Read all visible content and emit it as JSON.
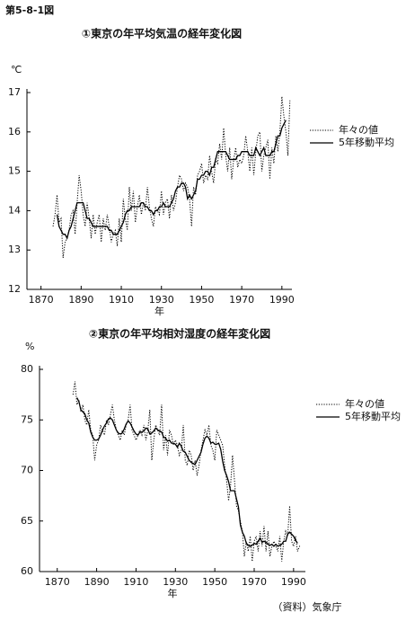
{
  "figure_label": "第5-8-1図",
  "source": "（資料）気象庁",
  "chart_data": [
    {
      "type": "line",
      "title": "①東京の年平均気温の経年変化図",
      "y_unit": "℃",
      "x_label": "年",
      "xlim": [
        1863,
        1995
      ],
      "xticks": [
        1870,
        1890,
        1910,
        1930,
        1950,
        1970,
        1990
      ],
      "ylim": [
        12,
        17
      ],
      "yticks": [
        12,
        13,
        14,
        15,
        16,
        17
      ],
      "grid": false,
      "x": [
        1876,
        1877,
        1878,
        1879,
        1880,
        1881,
        1882,
        1883,
        1884,
        1885,
        1886,
        1887,
        1888,
        1889,
        1890,
        1891,
        1892,
        1893,
        1894,
        1895,
        1896,
        1897,
        1898,
        1899,
        1900,
        1901,
        1902,
        1903,
        1904,
        1905,
        1906,
        1907,
        1908,
        1909,
        1910,
        1911,
        1912,
        1913,
        1914,
        1915,
        1916,
        1917,
        1918,
        1919,
        1920,
        1921,
        1922,
        1923,
        1924,
        1925,
        1926,
        1927,
        1928,
        1929,
        1930,
        1931,
        1932,
        1933,
        1934,
        1935,
        1936,
        1937,
        1938,
        1939,
        1940,
        1941,
        1942,
        1943,
        1944,
        1945,
        1946,
        1947,
        1948,
        1949,
        1950,
        1951,
        1952,
        1953,
        1954,
        1955,
        1956,
        1957,
        1958,
        1959,
        1960,
        1961,
        1962,
        1963,
        1964,
        1965,
        1966,
        1967,
        1968,
        1969,
        1970,
        1971,
        1972,
        1973,
        1974,
        1975,
        1976,
        1977,
        1978,
        1979,
        1980,
        1981,
        1982,
        1983,
        1984,
        1985,
        1986,
        1987,
        1988,
        1989,
        1990,
        1991,
        1992,
        1993,
        1994
      ],
      "series": [
        {
          "name": "年々の値",
          "color": "#000000",
          "style": "dotted",
          "values": [
            13.6,
            13.9,
            14.4,
            13.7,
            13.8,
            12.8,
            13.2,
            13.3,
            13.5,
            13.9,
            14.0,
            13.4,
            14.2,
            14.9,
            14.5,
            13.9,
            13.6,
            14.2,
            13.8,
            13.3,
            13.9,
            13.4,
            13.7,
            13.9,
            13.2,
            13.8,
            13.5,
            13.9,
            13.6,
            13.2,
            13.4,
            13.5,
            13.1,
            13.8,
            13.2,
            14.3,
            13.8,
            13.5,
            14.6,
            14.0,
            14.5,
            13.7,
            14.1,
            14.4,
            13.9,
            14.2,
            14.0,
            14.6,
            14.1,
            13.8,
            13.6,
            14.1,
            14.0,
            13.9,
            14.5,
            13.9,
            14.2,
            14.3,
            13.8,
            14.4,
            14.0,
            14.2,
            14.6,
            14.9,
            14.8,
            14.5,
            14.7,
            14.6,
            14.3,
            13.6,
            14.6,
            14.4,
            14.9,
            15.0,
            15.2,
            14.7,
            14.9,
            14.8,
            15.4,
            15.0,
            14.7,
            15.3,
            15.2,
            15.7,
            15.3,
            16.1,
            15.4,
            15.0,
            15.6,
            14.8,
            15.3,
            15.6,
            15.1,
            15.3,
            15.2,
            15.4,
            15.9,
            15.5,
            15.0,
            15.6,
            14.9,
            15.5,
            15.9,
            16.0,
            15.0,
            15.4,
            15.6,
            15.8,
            14.8,
            15.6,
            15.2,
            15.9,
            15.5,
            16.0,
            16.9,
            16.4,
            16.0,
            15.4,
            16.8
          ]
        },
        {
          "name": "5年移動平均",
          "color": "#000000",
          "style": "solid",
          "values": [
            null,
            null,
            13.9,
            13.6,
            13.5,
            13.4,
            13.4,
            13.3,
            13.5,
            13.6,
            13.8,
            14.0,
            14.2,
            14.2,
            14.2,
            14.2,
            14.0,
            13.8,
            13.8,
            13.7,
            13.6,
            13.6,
            13.6,
            13.6,
            13.6,
            13.6,
            13.6,
            13.6,
            13.5,
            13.5,
            13.4,
            13.4,
            13.4,
            13.5,
            13.6,
            13.7,
            13.9,
            14.0,
            14.0,
            14.1,
            14.1,
            14.1,
            14.1,
            14.1,
            14.2,
            14.2,
            14.1,
            14.1,
            14.0,
            14.0,
            13.9,
            14.0,
            14.0,
            14.1,
            14.1,
            14.2,
            14.1,
            14.1,
            14.1,
            14.2,
            14.3,
            14.5,
            14.6,
            14.6,
            14.7,
            14.7,
            14.6,
            14.3,
            14.4,
            14.3,
            14.4,
            14.5,
            14.8,
            14.8,
            14.9,
            14.9,
            15.0,
            15.0,
            14.9,
            15.1,
            15.1,
            15.3,
            15.5,
            15.5,
            15.5,
            15.5,
            15.5,
            15.4,
            15.3,
            15.3,
            15.3,
            15.3,
            15.4,
            15.4,
            15.5,
            15.5,
            15.5,
            15.5,
            15.4,
            15.4,
            15.4,
            15.6,
            15.5,
            15.4,
            15.5,
            15.6,
            15.4,
            15.4,
            15.4,
            15.5,
            15.5,
            15.7,
            15.9,
            15.9,
            16.1,
            16.2,
            16.3,
            null,
            null
          ]
        }
      ]
    },
    {
      "type": "line",
      "title": "②東京の年平均相対湿度の経年変化図",
      "y_unit": "%",
      "x_label": "年",
      "xlim": [
        1861,
        1996
      ],
      "xticks": [
        1870,
        1890,
        1910,
        1930,
        1950,
        1970,
        1990
      ],
      "ylim": [
        60,
        80
      ],
      "yticks": [
        60,
        65,
        70,
        75,
        80
      ],
      "grid": false,
      "x": [
        1876,
        1877,
        1878,
        1879,
        1880,
        1881,
        1882,
        1883,
        1884,
        1885,
        1886,
        1887,
        1888,
        1889,
        1890,
        1891,
        1892,
        1893,
        1894,
        1895,
        1896,
        1897,
        1898,
        1899,
        1900,
        1901,
        1902,
        1903,
        1904,
        1905,
        1906,
        1907,
        1908,
        1909,
        1910,
        1911,
        1912,
        1913,
        1914,
        1915,
        1916,
        1917,
        1918,
        1919,
        1920,
        1921,
        1922,
        1923,
        1924,
        1925,
        1926,
        1927,
        1928,
        1929,
        1930,
        1931,
        1932,
        1933,
        1934,
        1935,
        1936,
        1937,
        1938,
        1939,
        1940,
        1941,
        1942,
        1943,
        1944,
        1945,
        1946,
        1947,
        1948,
        1949,
        1950,
        1951,
        1952,
        1953,
        1954,
        1955,
        1956,
        1957,
        1958,
        1959,
        1960,
        1961,
        1962,
        1963,
        1964,
        1965,
        1966,
        1967,
        1968,
        1969,
        1970,
        1971,
        1972,
        1973,
        1974,
        1975,
        1976,
        1977,
        1978,
        1979,
        1980,
        1981,
        1982,
        1983,
        1984,
        1985,
        1986,
        1987,
        1988,
        1989,
        1990,
        1991,
        1992,
        1993,
        1994
      ],
      "series": [
        {
          "name": "年々の値",
          "color": "#000000",
          "style": "dotted",
          "values": [
            null,
            null,
            77.5,
            78.8,
            76.5,
            77.0,
            75.8,
            76.5,
            75.0,
            74.5,
            76.0,
            74.0,
            73.5,
            71.0,
            72.5,
            73.0,
            74.5,
            74.0,
            73.5,
            75.0,
            74.5,
            75.5,
            76.5,
            75.0,
            74.0,
            73.5,
            73.0,
            74.0,
            73.5,
            74.5,
            75.0,
            76.5,
            74.0,
            73.5,
            73.0,
            73.5,
            74.0,
            73.5,
            74.5,
            73.0,
            74.0,
            76.0,
            71.0,
            73.0,
            74.5,
            74.0,
            73.5,
            76.5,
            72.0,
            73.5,
            71.5,
            74.0,
            73.5,
            72.5,
            73.0,
            72.5,
            71.5,
            72.0,
            74.5,
            71.0,
            70.5,
            72.0,
            71.5,
            70.0,
            71.0,
            69.5,
            70.5,
            72.0,
            73.0,
            74.0,
            73.5,
            74.5,
            72.5,
            72.0,
            71.0,
            74.0,
            73.5,
            73.0,
            72.5,
            70.5,
            69.0,
            67.0,
            68.5,
            71.5,
            69.0,
            66.5,
            66.0,
            65.0,
            64.0,
            61.5,
            63.0,
            62.0,
            63.5,
            61.0,
            63.0,
            63.5,
            62.0,
            64.0,
            62.5,
            64.5,
            62.0,
            64.0,
            61.5,
            62.5,
            63.0,
            62.5,
            62.0,
            63.5,
            61.0,
            63.0,
            64.0,
            63.5,
            66.5,
            63.0,
            62.5,
            63.5,
            62.0,
            62.5,
            62.5
          ]
        },
        {
          "name": "5年移動平均",
          "color": "#000000",
          "style": "solid",
          "values": [
            null,
            null,
            null,
            null,
            77.2,
            76.8,
            76.0,
            75.8,
            75.6,
            75.0,
            74.7,
            73.8,
            73.3,
            73.0,
            73.0,
            73.1,
            73.5,
            74.0,
            74.4,
            74.7,
            75.1,
            75.2,
            75.0,
            74.5,
            74.0,
            73.7,
            73.6,
            73.7,
            74.1,
            74.6,
            74.9,
            74.7,
            74.3,
            73.9,
            73.6,
            73.5,
            73.8,
            73.8,
            73.9,
            74.2,
            74.1,
            73.6,
            73.7,
            73.9,
            74.2,
            74.0,
            73.9,
            73.8,
            73.3,
            73.2,
            72.9,
            73.0,
            72.7,
            72.7,
            72.6,
            72.3,
            72.7,
            72.4,
            71.9,
            71.8,
            71.4,
            71.0,
            70.8,
            70.7,
            70.6,
            71.0,
            71.4,
            71.8,
            72.6,
            73.2,
            73.4,
            73.2,
            72.7,
            72.8,
            72.6,
            72.6,
            72.7,
            72.1,
            70.9,
            70.0,
            69.5,
            68.9,
            68.0,
            68.0,
            68.0,
            67.2,
            66.4,
            64.6,
            63.9,
            63.5,
            62.8,
            62.6,
            62.5,
            62.6,
            62.8,
            62.7,
            63.0,
            63.3,
            62.9,
            63.0,
            62.9,
            62.7,
            62.6,
            62.7,
            62.5,
            62.7,
            62.5,
            62.6,
            62.7,
            63.0,
            63.0,
            63.7,
            63.9,
            63.7,
            63.5,
            63.1,
            62.8,
            null,
            null
          ]
        }
      ]
    }
  ]
}
